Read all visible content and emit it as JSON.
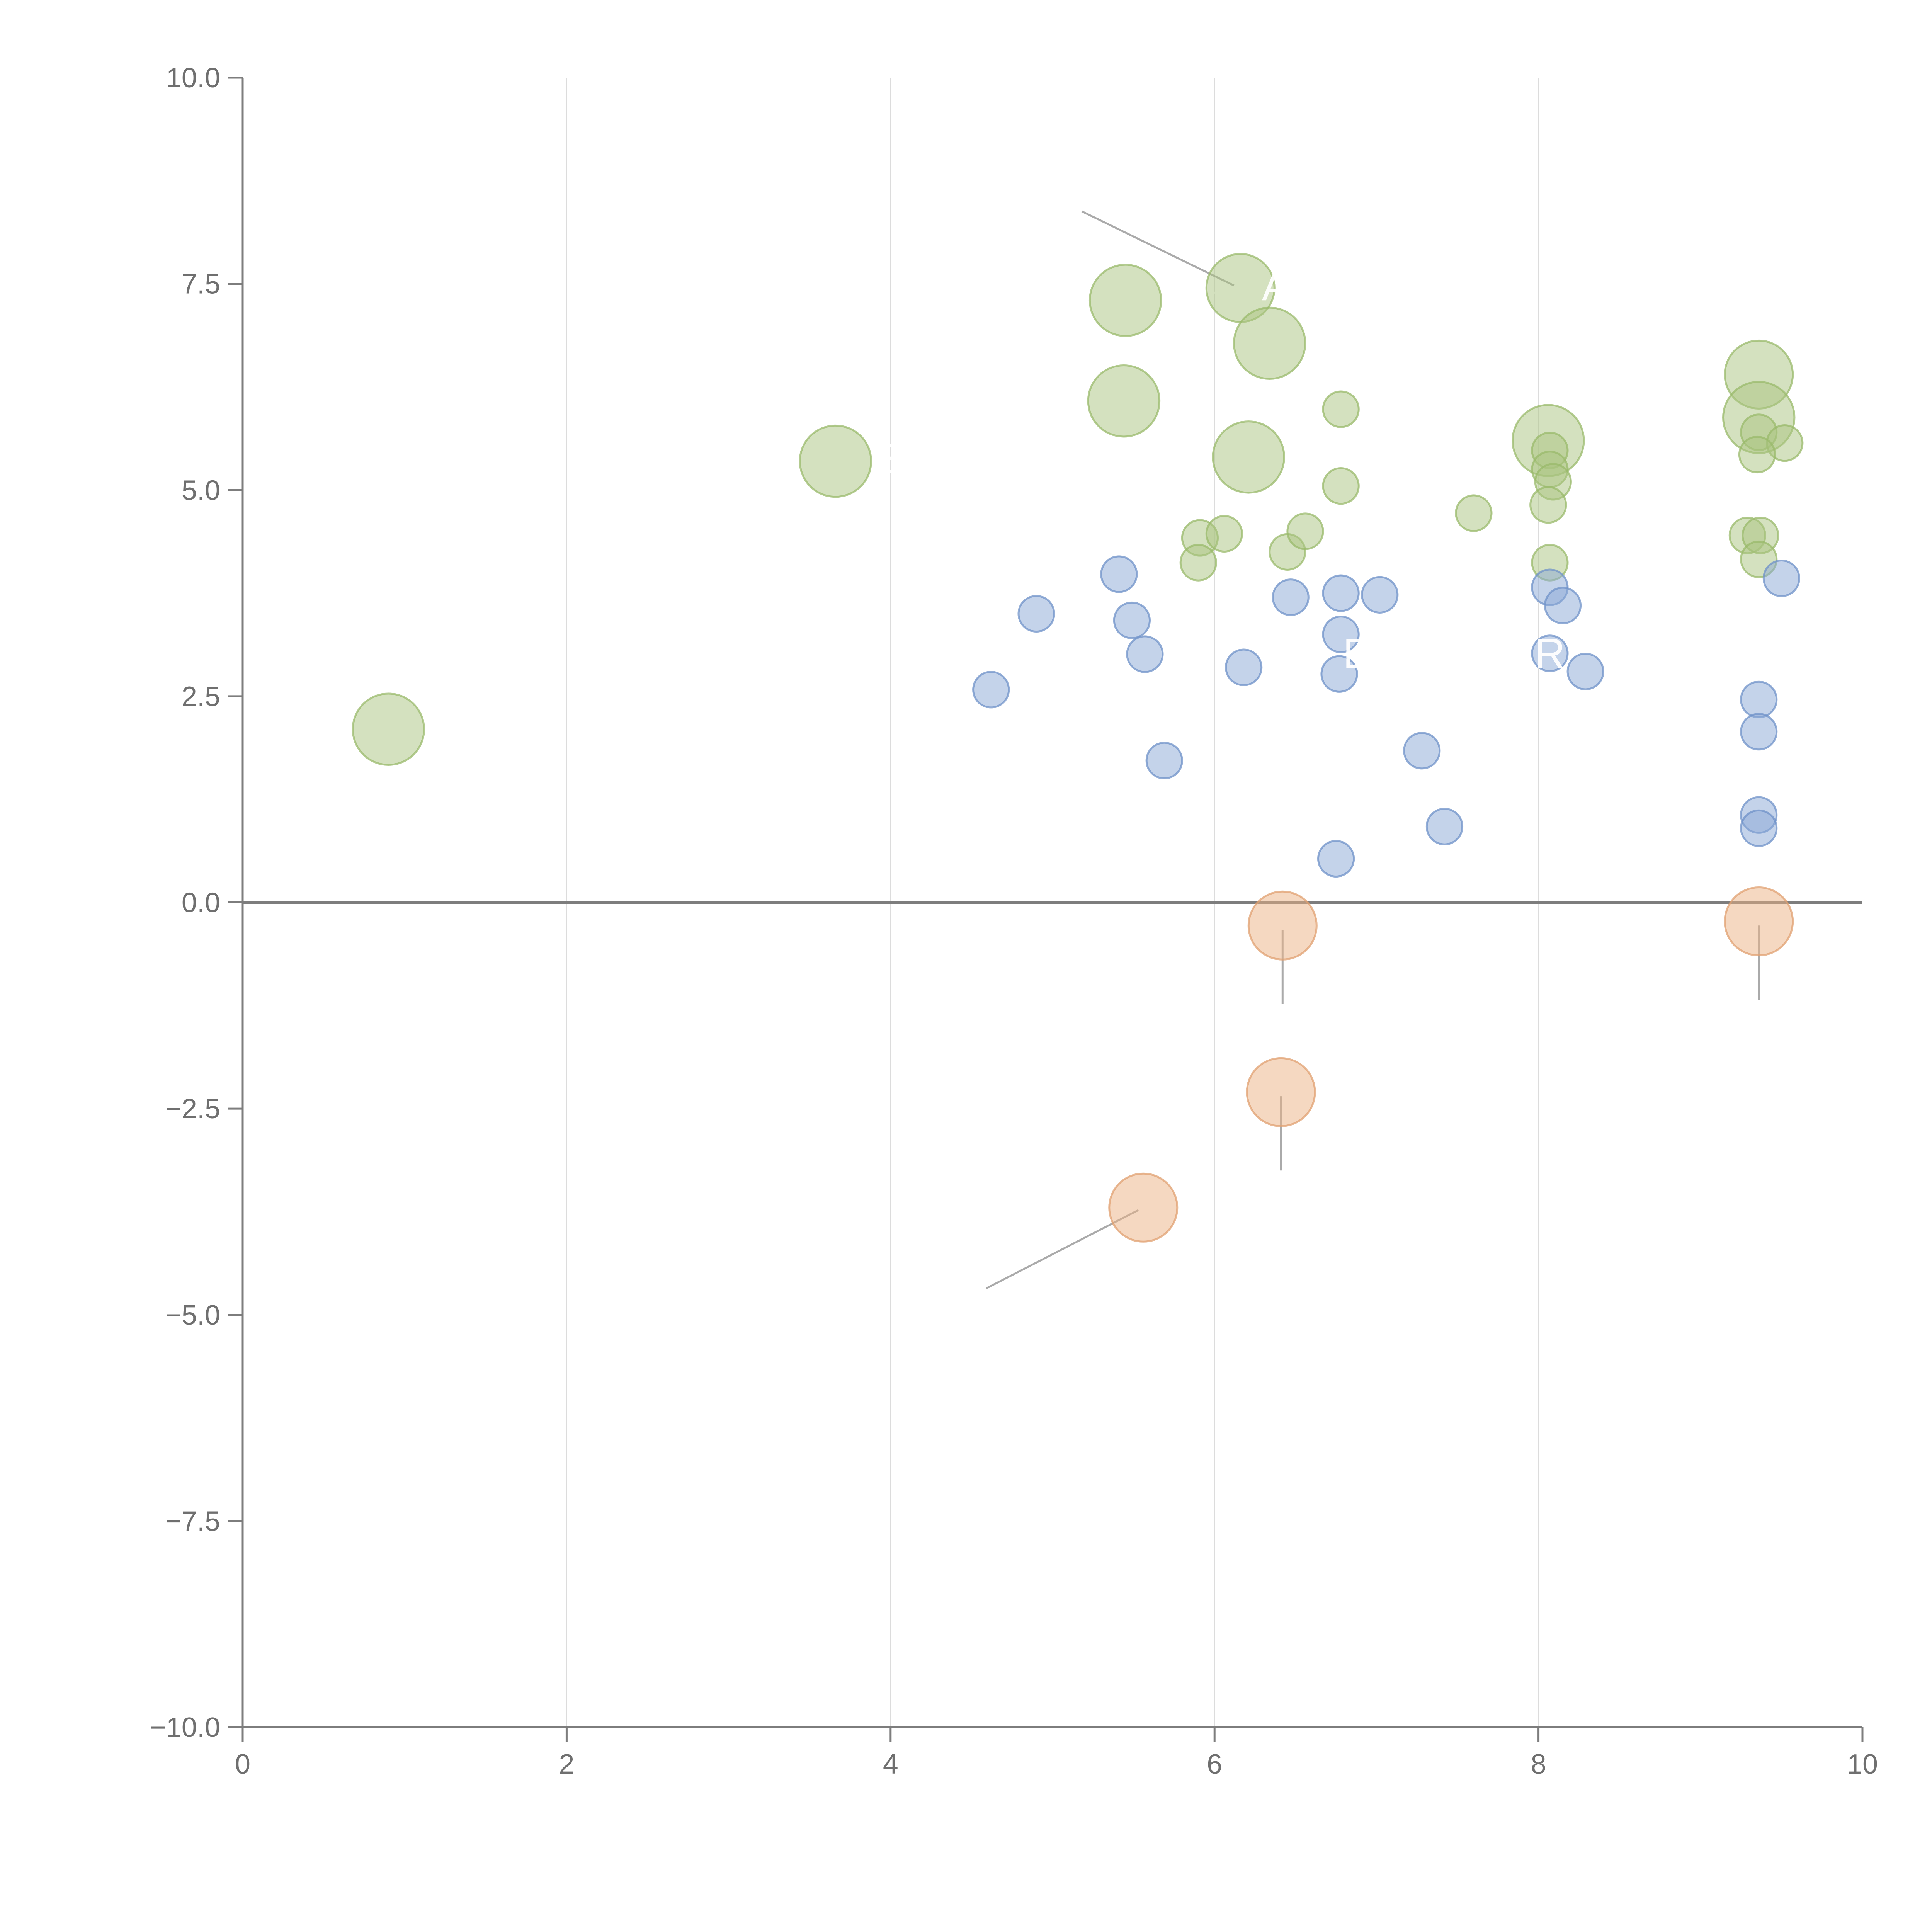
{
  "chart_data": {
    "type": "scatter",
    "title": "",
    "xlabel": "",
    "ylabel": "",
    "xlim": [
      0,
      10
    ],
    "ylim": [
      -10,
      10
    ],
    "x_ticks": [
      0,
      2,
      4,
      6,
      8,
      10
    ],
    "x_tick_labels": [
      "0",
      "2",
      "4",
      "6",
      "8",
      "10"
    ],
    "y_ticks": [
      10,
      7.5,
      5,
      2.5,
      0,
      -2.5,
      -5,
      -7.5,
      -10
    ],
    "y_tick_labels": [
      "10.0",
      "7.5",
      "5.0",
      "2.5",
      "0.0",
      "−2.5",
      "−5.0",
      "−7.5",
      "−10.0"
    ],
    "grid": "vertical",
    "zero_line": true,
    "series": [
      {
        "name": "green",
        "color": "#a9c47f",
        "stroke": "#9ab96b",
        "points": [
          {
            "x": 0.9,
            "y": 2.1,
            "r": 0.22
          },
          {
            "x": 3.66,
            "y": 5.35,
            "r": 0.22
          },
          {
            "x": 5.45,
            "y": 7.3,
            "r": 0.22
          },
          {
            "x": 5.44,
            "y": 6.08,
            "r": 0.22
          },
          {
            "x": 6.16,
            "y": 7.45,
            "r": 0.21
          },
          {
            "x": 6.34,
            "y": 6.78,
            "r": 0.22
          },
          {
            "x": 6.21,
            "y": 5.4,
            "r": 0.22
          },
          {
            "x": 8.06,
            "y": 5.6,
            "r": 0.22
          },
          {
            "x": 9.36,
            "y": 6.4,
            "r": 0.21
          },
          {
            "x": 9.36,
            "y": 5.88,
            "r": 0.22
          },
          {
            "x": 6.78,
            "y": 5.98,
            "r": 0.11
          },
          {
            "x": 6.78,
            "y": 5.05,
            "r": 0.11
          },
          {
            "x": 5.91,
            "y": 4.42,
            "r": 0.11
          },
          {
            "x": 6.06,
            "y": 4.47,
            "r": 0.11
          },
          {
            "x": 5.9,
            "y": 4.12,
            "r": 0.11
          },
          {
            "x": 6.45,
            "y": 4.25,
            "r": 0.11
          },
          {
            "x": 6.56,
            "y": 4.5,
            "r": 0.11
          },
          {
            "x": 7.6,
            "y": 4.72,
            "r": 0.11
          },
          {
            "x": 8.07,
            "y": 5.48,
            "r": 0.11
          },
          {
            "x": 8.07,
            "y": 5.25,
            "r": 0.11
          },
          {
            "x": 8.09,
            "y": 5.1,
            "r": 0.11
          },
          {
            "x": 8.06,
            "y": 4.82,
            "r": 0.11
          },
          {
            "x": 8.07,
            "y": 4.12,
            "r": 0.11
          },
          {
            "x": 9.36,
            "y": 5.7,
            "r": 0.11
          },
          {
            "x": 9.52,
            "y": 5.57,
            "r": 0.11
          },
          {
            "x": 9.35,
            "y": 5.43,
            "r": 0.11
          },
          {
            "x": 9.29,
            "y": 4.45,
            "r": 0.11
          },
          {
            "x": 9.37,
            "y": 4.45,
            "r": 0.11
          },
          {
            "x": 9.36,
            "y": 4.16,
            "r": 0.11
          }
        ]
      },
      {
        "name": "blue",
        "color": "#8aa8d6",
        "stroke": "#6f92c8",
        "points": [
          {
            "x": 5.41,
            "y": 3.98,
            "r": 0.11
          },
          {
            "x": 4.9,
            "y": 3.5,
            "r": 0.11
          },
          {
            "x": 5.49,
            "y": 3.42,
            "r": 0.11
          },
          {
            "x": 5.57,
            "y": 3.01,
            "r": 0.11
          },
          {
            "x": 4.62,
            "y": 2.58,
            "r": 0.11
          },
          {
            "x": 5.69,
            "y": 1.72,
            "r": 0.11
          },
          {
            "x": 6.18,
            "y": 2.85,
            "r": 0.11
          },
          {
            "x": 6.47,
            "y": 3.7,
            "r": 0.11
          },
          {
            "x": 6.78,
            "y": 3.75,
            "r": 0.11
          },
          {
            "x": 7.02,
            "y": 3.73,
            "r": 0.11
          },
          {
            "x": 6.78,
            "y": 3.25,
            "r": 0.11
          },
          {
            "x": 6.77,
            "y": 2.77,
            "r": 0.11
          },
          {
            "x": 7.28,
            "y": 1.84,
            "r": 0.11
          },
          {
            "x": 7.42,
            "y": 0.92,
            "r": 0.11
          },
          {
            "x": 6.75,
            "y": 0.53,
            "r": 0.11
          },
          {
            "x": 8.07,
            "y": 3.82,
            "r": 0.11
          },
          {
            "x": 8.15,
            "y": 3.6,
            "r": 0.11
          },
          {
            "x": 8.07,
            "y": 3.02,
            "r": 0.11
          },
          {
            "x": 8.29,
            "y": 2.8,
            "r": 0.11
          },
          {
            "x": 9.5,
            "y": 3.93,
            "r": 0.11
          },
          {
            "x": 9.36,
            "y": 2.46,
            "r": 0.11
          },
          {
            "x": 9.36,
            "y": 2.07,
            "r": 0.11
          },
          {
            "x": 9.36,
            "y": 1.06,
            "r": 0.11
          },
          {
            "x": 9.36,
            "y": 0.9,
            "r": 0.11
          }
        ]
      },
      {
        "name": "orange",
        "color": "#ebb184",
        "stroke": "#e0a070",
        "points": [
          {
            "x": 6.42,
            "y": -0.28,
            "r": 0.21
          },
          {
            "x": 9.36,
            "y": -0.23,
            "r": 0.21
          },
          {
            "x": 6.41,
            "y": -2.3,
            "r": 0.21
          },
          {
            "x": 5.56,
            "y": -3.7,
            "r": 0.21
          }
        ]
      }
    ],
    "leader_lines": [
      {
        "from": [
          5.18,
          8.38
        ],
        "to": [
          6.12,
          7.48
        ],
        "color": "#9c9c9c"
      },
      {
        "from": [
          6.42,
          -0.33
        ],
        "to": [
          6.42,
          -1.23
        ],
        "color": "#9c9c9c"
      },
      {
        "from": [
          9.36,
          -0.28
        ],
        "to": [
          9.36,
          -1.18
        ],
        "color": "#9c9c9c"
      },
      {
        "from": [
          6.41,
          -2.35
        ],
        "to": [
          6.41,
          -3.25
        ],
        "color": "#9c9c9c"
      },
      {
        "from": [
          5.53,
          -3.73
        ],
        "to": [
          4.59,
          -4.68
        ],
        "color": "#9c9c9c"
      },
      {
        "from": [
          5.5,
          7.28
        ],
        "to": [
          6.25,
          7.45
        ],
        "color": "#ffffff"
      },
      {
        "from": [
          6.41,
          6.78
        ],
        "to": [
          6.6,
          6.72
        ],
        "color": "#ffffff"
      },
      {
        "from": [
          5.48,
          6.08
        ],
        "to": [
          5.34,
          6.25
        ],
        "color": "#ffffff"
      },
      {
        "from": [
          6.24,
          5.38
        ],
        "to": [
          6.38,
          5.2
        ],
        "color": "#ffffff"
      },
      {
        "from": [
          8.07,
          5.48
        ],
        "to": [
          7.95,
          5.38
        ],
        "color": "#ffffff"
      },
      {
        "from": [
          9.37,
          6.5
        ],
        "to": [
          9.38,
          6.75
        ],
        "color": "#ffffff"
      },
      {
        "from": [
          9.37,
          5.75
        ],
        "to": [
          9.39,
          5.3
        ],
        "color": "#ffffff"
      },
      {
        "from": [
          7.0,
          3.8
        ],
        "to": [
          7.15,
          3.63
        ],
        "color": "#ffffff"
      },
      {
        "from": [
          7.57,
          4.62
        ],
        "to": [
          7.63,
          4.48
        ],
        "color": "#ffffff"
      }
    ],
    "annotations": [
      {
        "text": "A",
        "x": 6.38,
        "y": 7.48
      },
      {
        "text": "E",
        "x": 6.88,
        "y": 3.02
      },
      {
        "text": "R",
        "x": 8.07,
        "y": 3.02
      },
      {
        "text": "E",
        "x": 3.99,
        "y": 5.38
      },
      {
        "text": "-",
        "x": 5.45,
        "y": 6.65
      }
    ]
  }
}
